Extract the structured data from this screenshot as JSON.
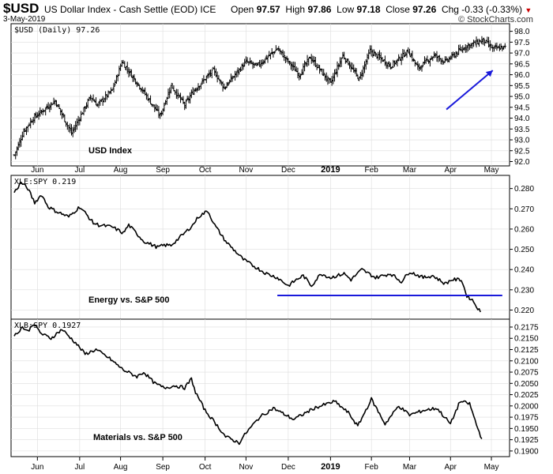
{
  "header": {
    "symbol": "$USD",
    "description": "US Dollar Index - Cash Settle (EOD) ICE",
    "date": "3-May-2019",
    "open_label": "Open",
    "open": "97.57",
    "high_label": "High",
    "high": "97.86",
    "low_label": "Low",
    "low": "97.18",
    "close_label": "Close",
    "close": "97.26",
    "chg_label": "Chg",
    "chg": "-0.33 (-0.33%)",
    "brand": "© StockCharts.com"
  },
  "colors": {
    "annotation": "#1a1adb",
    "price": "#000000",
    "grid": "#dddddd"
  },
  "x_axis": {
    "months": [
      "Jun",
      "Jul",
      "Aug",
      "Sep",
      "Oct",
      "Nov",
      "Dec",
      "2019",
      "Feb",
      "Mar",
      "Apr",
      "May"
    ],
    "month_positions_days": [
      17,
      48,
      78,
      109,
      140,
      170,
      201,
      232,
      262,
      290,
      320,
      350
    ]
  },
  "chart_data": [
    {
      "type": "bar",
      "title": "$USD (Daily) 97.26",
      "annotation": "USD Index",
      "ylim": [
        91.8,
        98.35
      ],
      "yticks": [
        92.0,
        92.5,
        93.0,
        93.5,
        94.0,
        94.5,
        95.0,
        95.5,
        96.0,
        96.5,
        97.0,
        97.5,
        98.0
      ],
      "ytick_labels": [
        "92.0",
        "92.5",
        "93.0",
        "93.5",
        "94.0",
        "94.5",
        "95.0",
        "95.5",
        "96.0",
        "96.5",
        "97.0",
        "97.5",
        "98.0"
      ],
      "anchors_day": [
        0,
        7,
        14,
        30,
        42,
        56,
        61,
        72,
        79,
        95,
        107,
        115,
        125,
        132,
        146,
        154,
        170,
        178,
        193,
        209,
        217,
        232,
        241,
        253,
        261,
        276,
        289,
        296,
        308,
        316,
        331,
        344,
        351,
        360
      ],
      "anchors_close": [
        92.3,
        93.4,
        94.0,
        94.8,
        93.3,
        95.0,
        94.6,
        95.3,
        96.6,
        95.2,
        94.1,
        95.5,
        94.6,
        95.3,
        96.2,
        95.4,
        96.6,
        96.4,
        97.2,
        96.0,
        96.8,
        95.6,
        96.9,
        95.8,
        97.1,
        96.4,
        97.1,
        96.3,
        96.9,
        96.6,
        97.3,
        97.6,
        97.2,
        97.26
      ],
      "trendline": {
        "from": [
          "2019-03-28",
          94.4
        ],
        "to": [
          "2019-05-01",
          96.2
        ]
      }
    },
    {
      "type": "line",
      "title": "XLE:SPY 0.219",
      "annotation": "Energy vs. S&P 500",
      "ylim": [
        0.2155,
        0.2865
      ],
      "yticks": [
        0.22,
        0.23,
        0.24,
        0.25,
        0.26,
        0.27,
        0.28
      ],
      "ytick_labels": [
        "0.220",
        "0.230",
        "0.240",
        "0.250",
        "0.260",
        "0.270",
        "0.280"
      ],
      "anchors_day": [
        0,
        5,
        10,
        15,
        20,
        25,
        30,
        40,
        48,
        52,
        58,
        62,
        72,
        80,
        84,
        95,
        105,
        110,
        115,
        125,
        131,
        135,
        142,
        147,
        155,
        168,
        175,
        185,
        193,
        195,
        201,
        207,
        212,
        218,
        225,
        232,
        242,
        247,
        255,
        265,
        276,
        284,
        290,
        300,
        307,
        316,
        321,
        328,
        332,
        336,
        342
      ],
      "anchors_value": [
        0.278,
        0.283,
        0.28,
        0.273,
        0.277,
        0.271,
        0.269,
        0.266,
        0.271,
        0.268,
        0.263,
        0.262,
        0.261,
        0.258,
        0.262,
        0.254,
        0.251,
        0.252,
        0.252,
        0.258,
        0.262,
        0.266,
        0.269,
        0.262,
        0.254,
        0.245,
        0.242,
        0.238,
        0.236,
        0.235,
        0.232,
        0.235,
        0.237,
        0.232,
        0.238,
        0.236,
        0.238,
        0.235,
        0.24,
        0.236,
        0.238,
        0.234,
        0.239,
        0.236,
        0.237,
        0.233,
        0.235,
        0.235,
        0.227,
        0.225,
        0.219
      ],
      "support_line": {
        "y": 0.2272,
        "from_day": 193,
        "to_day": 358
      }
    },
    {
      "type": "line",
      "title": "XLB:SPY 0.1927",
      "annotation": "Materials vs. S&P 500",
      "ylim": [
        0.18875,
        0.21925
      ],
      "yticks": [
        0.19,
        0.1925,
        0.195,
        0.1975,
        0.2,
        0.2025,
        0.205,
        0.2075,
        0.21,
        0.2125,
        0.215,
        0.2175
      ],
      "ytick_labels": [
        "0.1900",
        "0.1925",
        "0.1950",
        "0.1975",
        "0.2000",
        "0.2025",
        "0.2050",
        "0.2075",
        "0.2100",
        "0.2125",
        "0.2150",
        "0.2175"
      ],
      "anchors_day": [
        0,
        6,
        10,
        14,
        20,
        27,
        35,
        45,
        52,
        60,
        70,
        80,
        90,
        95,
        103,
        110,
        118,
        125,
        130,
        133,
        140,
        148,
        155,
        165,
        170,
        180,
        190,
        196,
        205,
        220,
        235,
        245,
        252,
        262,
        272,
        282,
        290,
        300,
        310,
        320,
        327,
        334,
        340,
        343
      ],
      "anchors_value": [
        0.2155,
        0.2175,
        0.2165,
        0.2183,
        0.216,
        0.215,
        0.217,
        0.214,
        0.2115,
        0.2125,
        0.2105,
        0.208,
        0.2065,
        0.2075,
        0.205,
        0.204,
        0.2045,
        0.204,
        0.206,
        0.203,
        0.199,
        0.196,
        0.1932,
        0.1918,
        0.194,
        0.1975,
        0.1995,
        0.1985,
        0.197,
        0.1995,
        0.201,
        0.1985,
        0.1955,
        0.2015,
        0.196,
        0.2,
        0.198,
        0.199,
        0.1995,
        0.196,
        0.201,
        0.2005,
        0.195,
        0.1927
      ]
    }
  ]
}
